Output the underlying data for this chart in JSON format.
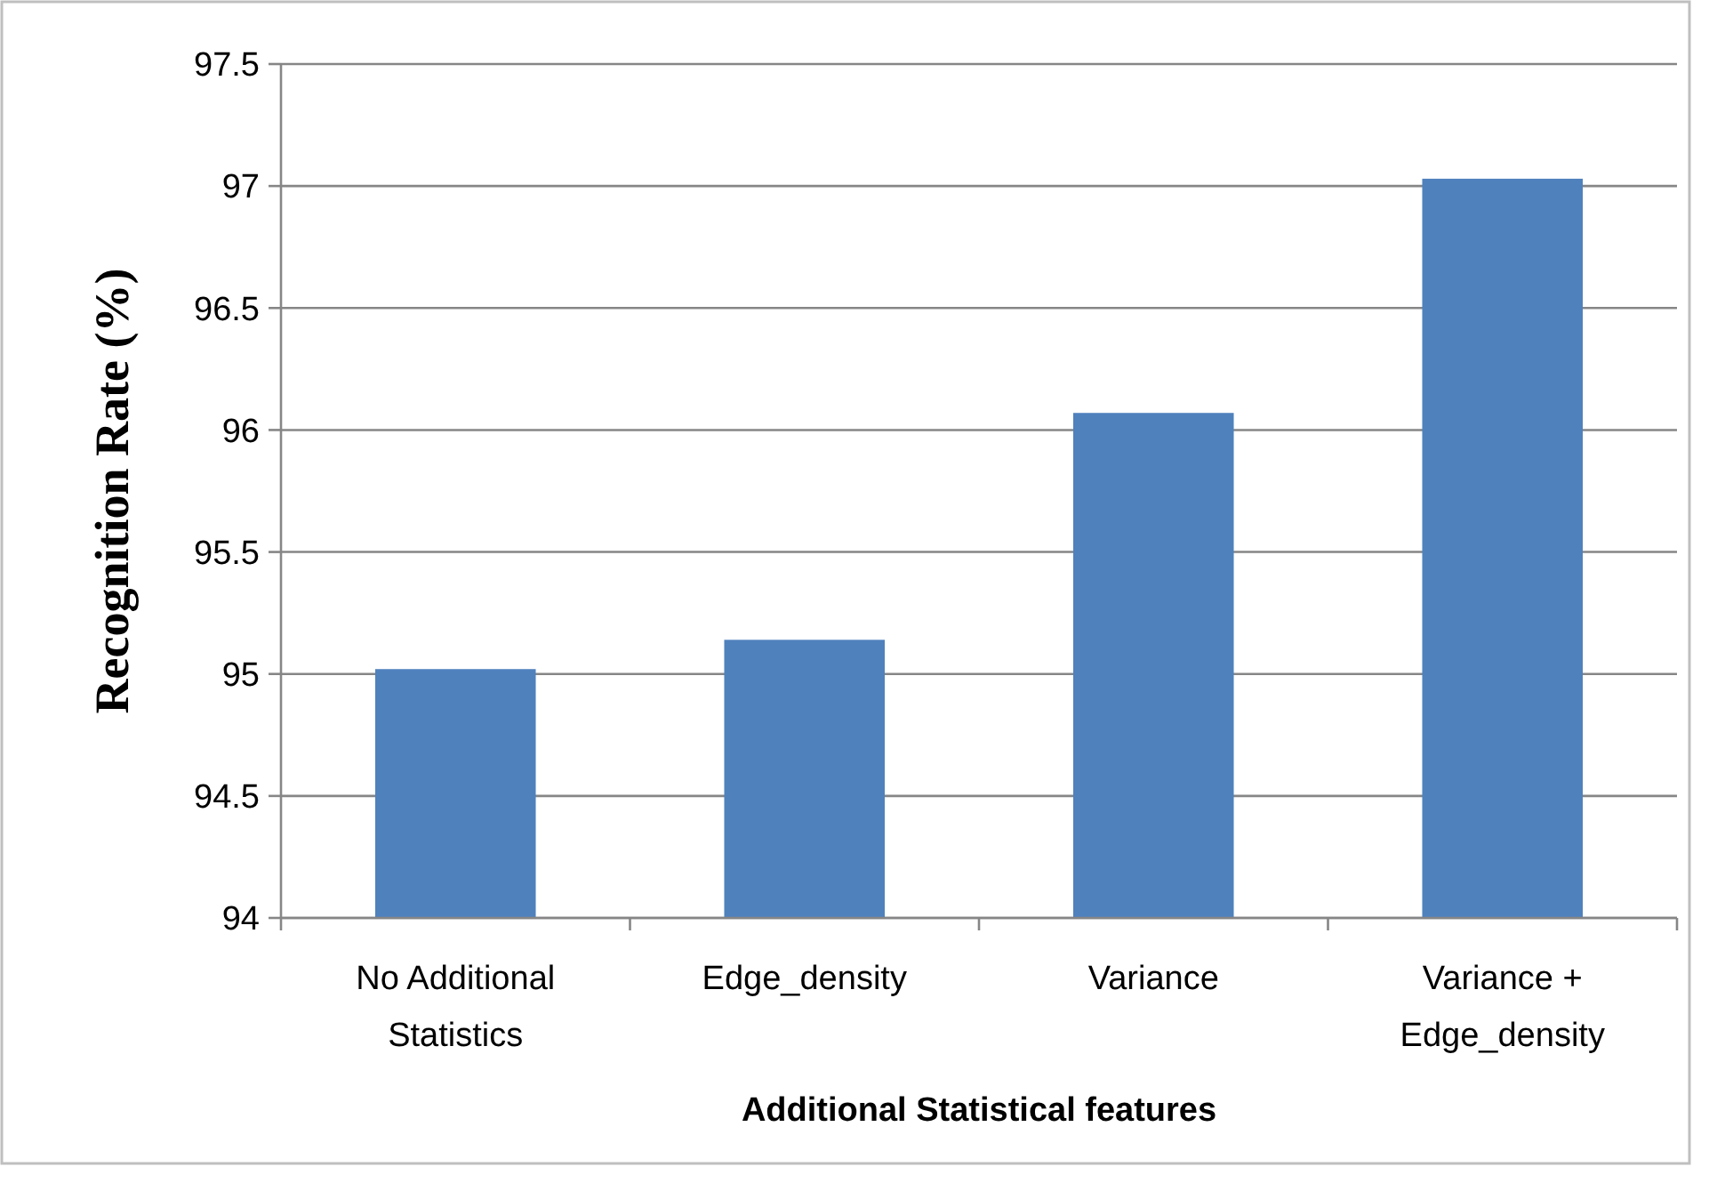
{
  "chart_data": {
    "type": "bar",
    "xlabel": "Additional Statistical features",
    "ylabel": "Recognition Rate (%)",
    "categories": [
      "No Additional Statistics",
      "Edge_density",
      "Variance",
      "Variance + Edge_density"
    ],
    "values": [
      95.02,
      95.14,
      96.07,
      97.03
    ],
    "color": "#4f81bd",
    "ylim": [
      94,
      97.5
    ],
    "yticks": [
      94,
      94.5,
      95,
      95.5,
      96,
      96.5,
      97,
      97.5
    ],
    "grid": "y"
  }
}
